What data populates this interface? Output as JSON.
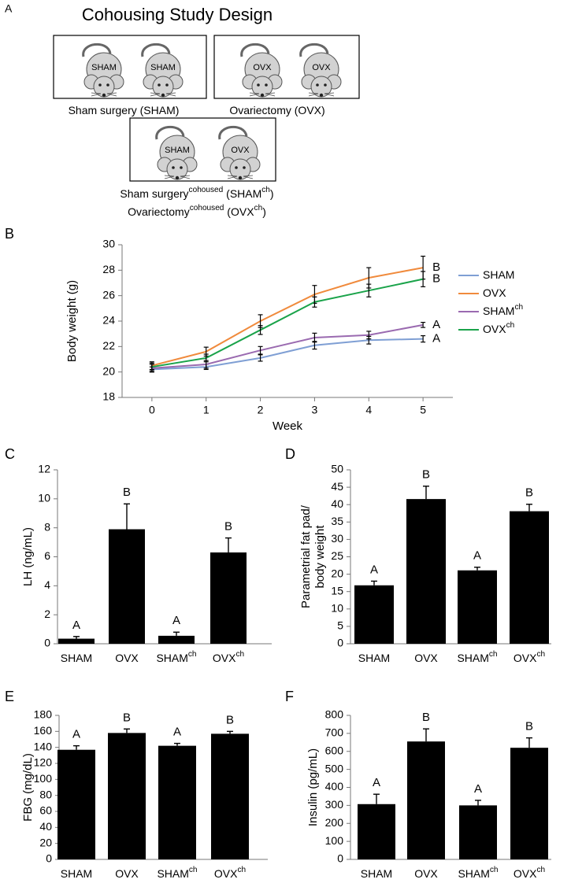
{
  "panel_a": {
    "label": "A",
    "title": "Cohousing Study Design",
    "boxes": [
      {
        "mice": [
          "SHAM",
          "SHAM"
        ]
      },
      {
        "mice": [
          "OVX",
          "OVX"
        ]
      },
      {
        "mice": [
          "SHAM",
          "OVX"
        ]
      }
    ],
    "captions": [
      [
        "Sham surgery (SHAM)"
      ],
      [
        "Ovariectomy (OVX)"
      ],
      [
        "Sham surgery",
        "cohoused",
        " (SHAM",
        "ch",
        ")"
      ],
      [
        "Ovariectomy",
        "cohoused",
        " (OVX",
        "ch",
        ")"
      ]
    ]
  },
  "chart_data": [
    {
      "panel": "B",
      "type": "line",
      "x_label": [
        "Week"
      ],
      "y_label": [
        "Body weight (g)"
      ],
      "x": [
        0,
        1,
        2,
        3,
        4,
        5
      ],
      "xlim": [
        -0.55,
        5.55
      ],
      "xticks": [
        0,
        1,
        2,
        3,
        4,
        5
      ],
      "ylim": [
        18,
        30
      ],
      "yticks": [
        18,
        20,
        22,
        24,
        26,
        28,
        30
      ],
      "legend": "right",
      "series": [
        {
          "name": [
            "SHAM"
          ],
          "color": "#7f9fd4",
          "values": [
            20.2,
            20.4,
            21.1,
            22.1,
            22.5,
            22.6
          ],
          "errors": [
            0.2,
            0.2,
            0.25,
            0.3,
            0.3,
            0.25
          ],
          "sig": "A"
        },
        {
          "name": [
            "OVX"
          ],
          "color": "#f08a3c",
          "values": [
            20.5,
            21.6,
            24.0,
            26.1,
            27.4,
            28.2
          ],
          "errors": [
            0.3,
            0.35,
            0.5,
            0.7,
            0.8,
            0.9
          ],
          "sig": "B"
        },
        {
          "name": [
            "SHAM",
            "ch"
          ],
          "color": "#9a6ab0",
          "values": [
            20.3,
            20.6,
            21.7,
            22.7,
            22.9,
            23.7
          ],
          "errors": [
            0.3,
            0.3,
            0.3,
            0.35,
            0.3,
            0.2
          ],
          "sig": "A"
        },
        {
          "name": [
            "OVX",
            "ch"
          ],
          "color": "#1aa34a",
          "values": [
            20.4,
            21.1,
            23.3,
            25.5,
            26.4,
            27.3
          ],
          "errors": [
            0.3,
            0.3,
            0.35,
            0.4,
            0.5,
            0.6
          ],
          "sig": "B"
        }
      ]
    },
    {
      "panel": "C",
      "type": "bar",
      "y_label": [
        "LH (ng/mL)"
      ],
      "categories": [
        [
          "SHAM"
        ],
        [
          "OVX"
        ],
        [
          "SHAM",
          "ch"
        ],
        [
          "OVX",
          "ch"
        ]
      ],
      "values": [
        0.35,
        7.9,
        0.55,
        6.3
      ],
      "errors": [
        0.15,
        1.75,
        0.25,
        1.0
      ],
      "annotations": [
        "A",
        "B",
        "A",
        "B"
      ],
      "color": "#000000",
      "ylim": [
        0,
        12
      ],
      "yticks": [
        0,
        2,
        4,
        6,
        8,
        10,
        12
      ]
    },
    {
      "panel": "D",
      "type": "bar",
      "y_label": [
        "Parametrial fat pad/",
        "body weight"
      ],
      "categories": [
        [
          "SHAM"
        ],
        [
          "OVX"
        ],
        [
          "SHAM",
          "ch"
        ],
        [
          "OVX",
          "ch"
        ]
      ],
      "values": [
        16.8,
        41.6,
        21.1,
        38.1
      ],
      "errors": [
        1.2,
        3.7,
        0.9,
        2.0
      ],
      "annotations": [
        "A",
        "B",
        "A",
        "B"
      ],
      "color": "#000000",
      "ylim": [
        0,
        50
      ],
      "yticks": [
        0,
        5,
        10,
        15,
        20,
        25,
        30,
        35,
        40,
        45,
        50
      ]
    },
    {
      "panel": "E",
      "type": "bar",
      "y_label": [
        "FBG (mg/dL)"
      ],
      "categories": [
        [
          "SHAM"
        ],
        [
          "OVX"
        ],
        [
          "SHAM",
          "ch"
        ],
        [
          "OVX",
          "ch"
        ]
      ],
      "values": [
        137,
        158,
        142,
        157
      ],
      "errors": [
        5,
        5,
        3,
        3
      ],
      "annotations": [
        "A",
        "B",
        "A",
        "B"
      ],
      "color": "#000000",
      "ylim": [
        0,
        180
      ],
      "yticks": [
        0,
        20,
        40,
        60,
        80,
        100,
        120,
        140,
        160,
        180
      ]
    },
    {
      "panel": "F",
      "type": "bar",
      "y_label": [
        "Insulin (pg/mL)"
      ],
      "categories": [
        [
          "SHAM"
        ],
        [
          "OVX"
        ],
        [
          "SHAM",
          "ch"
        ],
        [
          "OVX",
          "ch"
        ]
      ],
      "values": [
        307,
        655,
        300,
        620
      ],
      "errors": [
        55,
        70,
        28,
        55
      ],
      "annotations": [
        "A",
        "B",
        "A",
        "B"
      ],
      "color": "#000000",
      "ylim": [
        0,
        800
      ],
      "yticks": [
        0,
        100,
        200,
        300,
        400,
        500,
        600,
        700,
        800
      ]
    }
  ]
}
